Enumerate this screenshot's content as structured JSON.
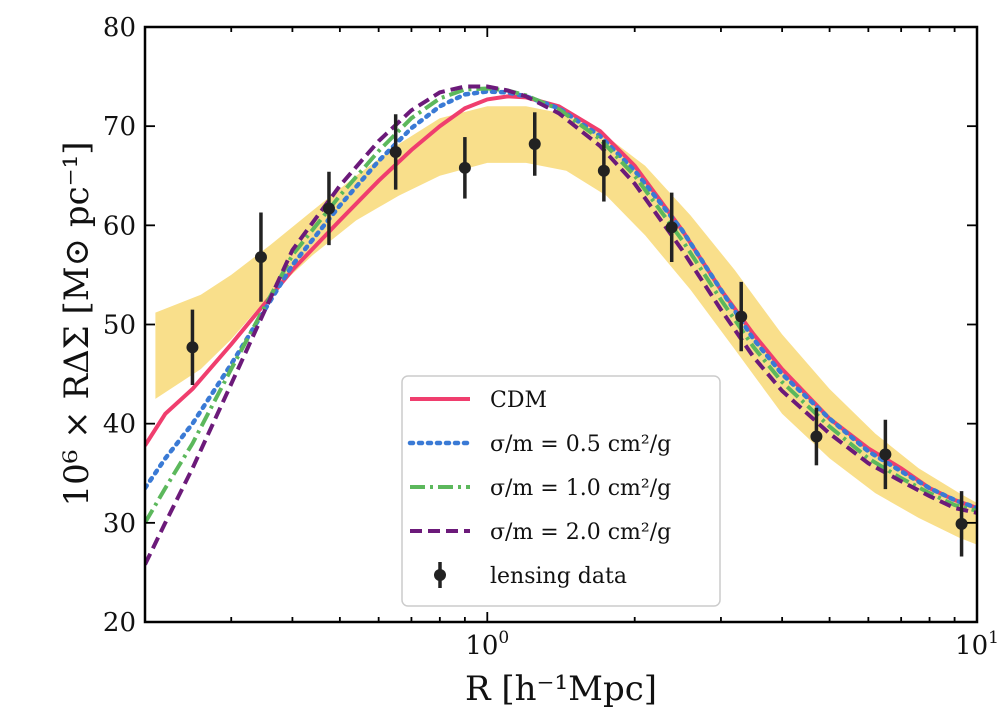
{
  "chart_data": {
    "type": "line",
    "xscale": "log",
    "xlim": [
      0.2,
      10
    ],
    "ylim": [
      20,
      80
    ],
    "xlabel": "R [h⁻¹Mpc]",
    "ylabel": "10⁶ × RΔΣ [M⊙ pc⁻¹]",
    "y_ticks": [
      20,
      30,
      40,
      50,
      60,
      70,
      80
    ],
    "x_major_ticks": [
      {
        "value": 1,
        "label_base": "10",
        "label_exp": "0"
      },
      {
        "value": 10,
        "label_base": "10",
        "label_exp": "1"
      }
    ],
    "x_minor_ticks": [
      0.2,
      0.3,
      0.4,
      0.5,
      0.6,
      0.7,
      0.8,
      0.9,
      2,
      3,
      4,
      5,
      6,
      7,
      8,
      9
    ],
    "band": {
      "color": "#f9df8b",
      "x": [
        0.21,
        0.26,
        0.3,
        0.36,
        0.44,
        0.54,
        0.66,
        0.8,
        1.0,
        1.2,
        1.45,
        1.75,
        2.1,
        2.6,
        3.2,
        4.0,
        5.0,
        6.2,
        7.6,
        9.2,
        10.0
      ],
      "upper": [
        51.2,
        53.0,
        55.0,
        58.0,
        61.5,
        65.0,
        68.2,
        70.8,
        72.0,
        72.0,
        71.2,
        69.0,
        66.0,
        61.0,
        55.5,
        49.0,
        43.5,
        39.0,
        35.5,
        33.0,
        32.0
      ],
      "lower": [
        42.5,
        45.5,
        48.5,
        53.0,
        57.0,
        60.5,
        63.0,
        65.0,
        66.3,
        66.3,
        65.5,
        63.0,
        59.0,
        53.5,
        47.5,
        41.0,
        36.5,
        33.0,
        30.5,
        28.5,
        27.8
      ]
    },
    "series": [
      {
        "name": "CDM",
        "color": "#f03e6e",
        "style": "solid",
        "x": [
          0.2,
          0.22,
          0.25,
          0.3,
          0.4,
          0.5,
          0.6,
          0.7,
          0.8,
          0.9,
          1.0,
          1.1,
          1.2,
          1.4,
          1.7,
          2.0,
          2.5,
          3.0,
          3.5,
          4.0,
          5.0,
          6.0,
          7.0,
          8.0,
          9.0,
          10.0
        ],
        "y": [
          37.8,
          41.0,
          43.5,
          48.0,
          55.5,
          60.5,
          64.5,
          67.6,
          70.0,
          71.8,
          72.7,
          73.0,
          72.9,
          72.0,
          69.5,
          66.0,
          59.5,
          53.5,
          49.0,
          45.5,
          40.5,
          37.5,
          35.5,
          33.5,
          32.3,
          31.5
        ]
      },
      {
        "name": "σ/m = 0.5 cm²/g",
        "color": "#3a7ad5",
        "style": "dotted",
        "x": [
          0.2,
          0.22,
          0.25,
          0.3,
          0.4,
          0.5,
          0.6,
          0.7,
          0.8,
          0.9,
          1.0,
          1.1,
          1.2,
          1.4,
          1.7,
          2.0,
          2.5,
          3.0,
          3.5,
          4.0,
          5.0,
          6.0,
          7.0,
          8.0,
          9.0,
          10.0
        ],
        "y": [
          33.5,
          36.5,
          40.0,
          46.0,
          56.0,
          62.0,
          66.5,
          69.8,
          72.0,
          73.2,
          73.5,
          73.4,
          73.0,
          71.8,
          69.0,
          65.5,
          59.5,
          53.5,
          48.5,
          45.0,
          40.5,
          37.2,
          35.2,
          33.5,
          32.3,
          31.5
        ]
      },
      {
        "name": "σ/m = 1.0 cm²/g",
        "color": "#5cb85c",
        "style": "dashdot",
        "x": [
          0.2,
          0.22,
          0.25,
          0.3,
          0.4,
          0.5,
          0.6,
          0.7,
          0.8,
          0.9,
          1.0,
          1.1,
          1.2,
          1.4,
          1.7,
          2.0,
          2.5,
          3.0,
          3.5,
          4.0,
          5.0,
          6.0,
          7.0,
          8.0,
          9.0,
          10.0
        ],
        "y": [
          30.0,
          33.5,
          38.0,
          45.5,
          57.0,
          63.0,
          67.5,
          70.8,
          72.8,
          73.7,
          73.8,
          73.6,
          73.1,
          71.7,
          68.7,
          65.0,
          58.5,
          52.5,
          47.7,
          44.2,
          39.7,
          36.5,
          34.5,
          33.0,
          31.8,
          31.2
        ]
      },
      {
        "name": "σ/m = 2.0 cm²/g",
        "color": "#6c1a7a",
        "style": "dashed",
        "x": [
          0.2,
          0.22,
          0.25,
          0.3,
          0.4,
          0.5,
          0.6,
          0.7,
          0.8,
          0.9,
          1.0,
          1.1,
          1.2,
          1.4,
          1.7,
          2.0,
          2.5,
          3.0,
          3.5,
          4.0,
          5.0,
          6.0,
          7.0,
          8.0,
          9.0,
          10.0
        ],
        "y": [
          25.8,
          30.0,
          35.5,
          44.0,
          57.5,
          64.0,
          68.5,
          71.6,
          73.4,
          74.0,
          74.0,
          73.6,
          73.0,
          71.3,
          68.0,
          64.2,
          57.5,
          51.5,
          46.7,
          43.3,
          39.0,
          36.0,
          34.2,
          32.7,
          31.5,
          31.0
        ]
      }
    ],
    "data_points": {
      "name": "lensing data",
      "color": "#222222",
      "points": [
        {
          "x": 0.25,
          "y": 47.7,
          "err": 3.8
        },
        {
          "x": 0.345,
          "y": 56.8,
          "err": 4.5
        },
        {
          "x": 0.475,
          "y": 61.7,
          "err": 3.7
        },
        {
          "x": 0.65,
          "y": 67.4,
          "err": 3.8
        },
        {
          "x": 0.9,
          "y": 65.8,
          "err": 3.1
        },
        {
          "x": 1.25,
          "y": 68.2,
          "err": 3.2
        },
        {
          "x": 1.73,
          "y": 65.5,
          "err": 3.1
        },
        {
          "x": 2.38,
          "y": 59.8,
          "err": 3.5
        },
        {
          "x": 3.3,
          "y": 50.8,
          "err": 3.5
        },
        {
          "x": 4.7,
          "y": 38.7,
          "err": 2.9
        },
        {
          "x": 6.5,
          "y": 36.9,
          "err": 3.5
        },
        {
          "x": 9.3,
          "y": 29.9,
          "err": 3.3
        }
      ]
    },
    "legend": {
      "position": "lower-center",
      "entries": [
        "CDM",
        "σ/m = 0.5 cm²/g",
        "σ/m = 1.0 cm²/g",
        "σ/m = 2.0 cm²/g",
        "lensing data"
      ]
    }
  }
}
